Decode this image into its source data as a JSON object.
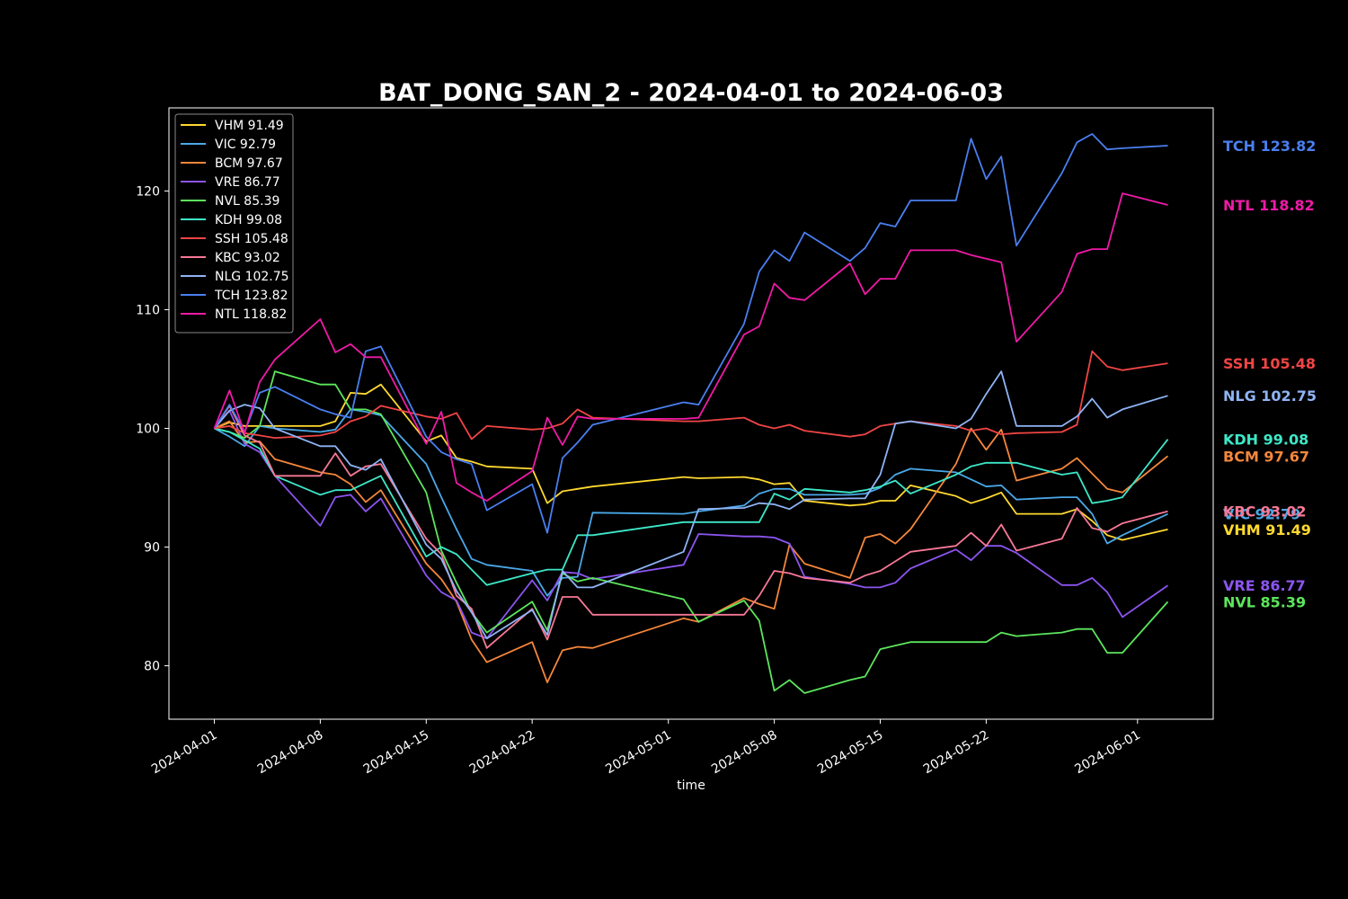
{
  "chart_data": {
    "type": "line",
    "title": "BAT_DONG_SAN_2 - 2024-04-01 to 2024-06-03",
    "xlabel": "time",
    "ylabel": "",
    "x_ticks": [
      "2024-04-01",
      "2024-04-08",
      "2024-04-15",
      "2024-04-22",
      "2024-05-01",
      "2024-05-08",
      "2024-05-15",
      "2024-05-22",
      "2024-06-01"
    ],
    "y_ticks": [
      80,
      90,
      100,
      110,
      120
    ],
    "ylim": [
      75.5,
      127.0
    ],
    "xlim": [
      "2024-03-29",
      "2024-06-06"
    ],
    "grid": false,
    "legend_position": "top-left",
    "dates": [
      "2024-04-01",
      "2024-04-02",
      "2024-04-03",
      "2024-04-04",
      "2024-04-05",
      "2024-04-08",
      "2024-04-09",
      "2024-04-10",
      "2024-04-11",
      "2024-04-12",
      "2024-04-15",
      "2024-04-16",
      "2024-04-17",
      "2024-04-18",
      "2024-04-19",
      "2024-04-22",
      "2024-04-23",
      "2024-04-24",
      "2024-04-25",
      "2024-04-26",
      "2024-05-02",
      "2024-05-03",
      "2024-05-06",
      "2024-05-07",
      "2024-05-08",
      "2024-05-09",
      "2024-05-10",
      "2024-05-13",
      "2024-05-14",
      "2024-05-15",
      "2024-05-16",
      "2024-05-17",
      "2024-05-20",
      "2024-05-21",
      "2024-05-22",
      "2024-05-23",
      "2024-05-24",
      "2024-05-27",
      "2024-05-28",
      "2024-05-29",
      "2024-05-30",
      "2024-05-31",
      "2024-06-03"
    ],
    "series": [
      {
        "name": "VHM",
        "label": "VHM 91.49",
        "color": "#ffd92f",
        "values": [
          100,
          100.5,
          100.2,
          100.2,
          100.2,
          100.2,
          100.6,
          103.0,
          102.9,
          103.7,
          98.9,
          99.4,
          97.5,
          97.2,
          96.8,
          96.6,
          93.7,
          94.7,
          94.9,
          95.1,
          95.9,
          95.8,
          95.9,
          95.7,
          95.3,
          95.4,
          93.9,
          93.5,
          93.6,
          93.9,
          93.9,
          95.2,
          94.3,
          93.7,
          94.1,
          94.6,
          92.8,
          92.8,
          93.2,
          92.2,
          91.0,
          90.6,
          91.49
        ]
      },
      {
        "name": "VIC",
        "label": "VIC 92.79",
        "color": "#4aa8e8",
        "values": [
          100,
          99.3,
          98.5,
          100.2,
          100.0,
          99.7,
          99.9,
          101.6,
          101.4,
          101.1,
          97.0,
          94.2,
          91.5,
          89.0,
          88.5,
          88.0,
          85.9,
          87.4,
          87.5,
          92.9,
          92.8,
          93.0,
          93.5,
          94.5,
          94.9,
          94.9,
          94.4,
          94.4,
          94.5,
          95.0,
          96.1,
          96.6,
          96.3,
          95.7,
          95.1,
          95.2,
          94.0,
          94.2,
          94.2,
          92.8,
          90.3,
          91.0,
          92.79
        ]
      },
      {
        "name": "BCM",
        "label": "BCM 97.67",
        "color": "#f5873b",
        "values": [
          100,
          100.6,
          98.8,
          98.9,
          97.4,
          96.3,
          96.1,
          95.3,
          93.8,
          94.8,
          88.6,
          87.3,
          85.4,
          82.2,
          80.3,
          82.0,
          78.6,
          81.3,
          81.6,
          81.5,
          84.0,
          83.7,
          85.7,
          85.2,
          84.8,
          90.2,
          88.6,
          87.4,
          90.8,
          91.1,
          90.3,
          91.5,
          97.0,
          100.0,
          98.2,
          99.9,
          95.6,
          96.6,
          97.5,
          96.2,
          94.9,
          94.6,
          97.67
        ]
      },
      {
        "name": "VRE",
        "label": "VRE 86.77",
        "color": "#8c55f0",
        "values": [
          100,
          101.5,
          98.7,
          98.0,
          96.0,
          91.8,
          94.2,
          94.4,
          93.0,
          94.1,
          87.6,
          86.2,
          85.5,
          82.8,
          82.3,
          87.2,
          85.5,
          87.9,
          87.8,
          87.3,
          88.5,
          91.1,
          90.9,
          90.9,
          90.8,
          90.3,
          87.5,
          86.9,
          86.6,
          86.6,
          87.0,
          88.2,
          89.8,
          88.9,
          90.1,
          90.1,
          89.5,
          86.8,
          86.8,
          87.4,
          86.2,
          84.1,
          86.77
        ]
      },
      {
        "name": "NVL",
        "label": "NVL 85.39",
        "color": "#5ce65c",
        "values": [
          100,
          99.7,
          99.2,
          100.2,
          104.8,
          103.7,
          103.7,
          101.6,
          101.6,
          101.2,
          94.6,
          89.7,
          87.0,
          84.5,
          82.8,
          85.4,
          83.0,
          87.8,
          87.1,
          87.4,
          85.6,
          83.7,
          85.5,
          83.8,
          77.9,
          78.8,
          77.7,
          78.8,
          79.1,
          81.4,
          81.7,
          82.0,
          82.0,
          82.0,
          82.0,
          82.8,
          82.5,
          82.8,
          83.1,
          83.1,
          81.1,
          81.1,
          85.39
        ]
      },
      {
        "name": "KDH",
        "label": "KDH 99.08",
        "color": "#3de8c8",
        "values": [
          100,
          99.7,
          99.0,
          98.3,
          96.0,
          94.4,
          94.8,
          94.8,
          95.4,
          96.0,
          89.2,
          90.0,
          89.4,
          88.1,
          86.8,
          87.8,
          88.1,
          88.1,
          91.0,
          91.0,
          92.1,
          92.1,
          92.1,
          92.1,
          94.5,
          94.0,
          94.9,
          94.6,
          94.8,
          95.1,
          95.6,
          94.5,
          96.1,
          96.8,
          97.1,
          97.1,
          97.1,
          96.1,
          96.3,
          93.7,
          93.9,
          94.2,
          99.08
        ]
      },
      {
        "name": "SSH",
        "label": "SSH 105.48",
        "color": "#f04545",
        "values": [
          100,
          100.2,
          99.6,
          99.4,
          99.2,
          99.4,
          99.7,
          100.6,
          101.0,
          101.9,
          101.0,
          100.8,
          101.3,
          99.1,
          100.2,
          99.9,
          100.0,
          100.4,
          101.6,
          100.9,
          100.6,
          100.6,
          100.9,
          100.3,
          100.0,
          100.3,
          99.8,
          99.3,
          99.5,
          100.2,
          100.4,
          100.6,
          100.2,
          99.8,
          100.0,
          99.5,
          99.6,
          99.7,
          100.3,
          106.5,
          105.2,
          104.9,
          105.48
        ]
      },
      {
        "name": "KBC",
        "label": "KBC 93.02",
        "color": "#f77896",
        "values": [
          100,
          101.9,
          99.4,
          98.8,
          96.0,
          96.0,
          97.9,
          96.0,
          96.8,
          97.0,
          90.7,
          89.4,
          85.9,
          84.8,
          81.5,
          84.8,
          82.2,
          85.8,
          85.8,
          84.3,
          84.3,
          84.3,
          84.3,
          85.9,
          88.0,
          87.8,
          87.4,
          87.0,
          87.6,
          88.0,
          88.8,
          89.6,
          90.1,
          91.2,
          90.1,
          91.9,
          89.7,
          90.7,
          93.3,
          91.6,
          91.3,
          92.0,
          93.02
        ]
      },
      {
        "name": "NLG",
        "label": "NLG 102.75",
        "color": "#8fb4f5",
        "values": [
          100,
          101.5,
          102.0,
          101.7,
          100.0,
          98.5,
          98.5,
          96.9,
          96.5,
          97.4,
          90.2,
          89.0,
          86.3,
          84.5,
          82.3,
          84.7,
          82.6,
          88.0,
          86.6,
          86.6,
          89.6,
          93.2,
          93.3,
          93.7,
          93.6,
          93.2,
          94.0,
          94.1,
          94.1,
          96.1,
          100.4,
          100.6,
          100.0,
          100.8,
          102.9,
          104.8,
          100.2,
          100.2,
          101.0,
          102.5,
          100.9,
          101.6,
          102.75
        ]
      },
      {
        "name": "TCH",
        "label": "TCH 123.82",
        "color": "#4a7ff0",
        "values": [
          100,
          102.0,
          99.7,
          103.0,
          103.5,
          101.6,
          101.2,
          100.9,
          106.5,
          106.9,
          99.3,
          98.0,
          97.4,
          97.0,
          93.1,
          95.3,
          91.2,
          97.5,
          98.8,
          100.3,
          102.2,
          102.0,
          108.8,
          113.2,
          115.0,
          114.1,
          116.5,
          114.1,
          115.2,
          117.3,
          117.0,
          119.2,
          119.2,
          124.4,
          121.0,
          122.9,
          115.4,
          121.5,
          124.1,
          124.8,
          123.5,
          123.6,
          123.82
        ]
      },
      {
        "name": "NTL",
        "label": "NTL 118.82",
        "color": "#f01aa6",
        "values": [
          100,
          103.2,
          99.6,
          103.9,
          105.8,
          109.2,
          106.4,
          107.1,
          106.0,
          106.0,
          98.7,
          101.4,
          95.4,
          94.6,
          93.9,
          96.4,
          100.9,
          98.6,
          101.0,
          100.8,
          100.8,
          100.9,
          107.9,
          108.6,
          112.2,
          111.0,
          110.8,
          113.9,
          111.3,
          112.6,
          112.6,
          115.0,
          115.0,
          114.6,
          114.3,
          114.0,
          107.3,
          111.5,
          114.7,
          115.1,
          115.1,
          119.8,
          118.82
        ]
      }
    ],
    "end_labels": [
      {
        "text": "TCH 123.82",
        "color": "#4a7ff0",
        "y": 123.82
      },
      {
        "text": "NTL 118.82",
        "color": "#f01aa6",
        "y": 118.82
      },
      {
        "text": "SSH 105.48",
        "color": "#f04545",
        "y": 105.48
      },
      {
        "text": "NLG 102.75",
        "color": "#8fb4f5",
        "y": 102.75
      },
      {
        "text": "KDH 99.08",
        "color": "#3de8c8",
        "y": 99.08
      },
      {
        "text": "BCM 97.67",
        "color": "#f5873b",
        "y": 97.67
      },
      {
        "text": "VIC 92.79",
        "color": "#4aa8e8",
        "y": 92.79
      },
      {
        "text": "KBC 93.02",
        "color": "#f77896",
        "y": 93.02
      },
      {
        "text": "VHM 91.49",
        "color": "#ffd92f",
        "y": 91.49
      },
      {
        "text": "VRE 86.77",
        "color": "#8c55f0",
        "y": 86.77
      },
      {
        "text": "NVL 85.39",
        "color": "#5ce65c",
        "y": 85.39
      }
    ]
  }
}
